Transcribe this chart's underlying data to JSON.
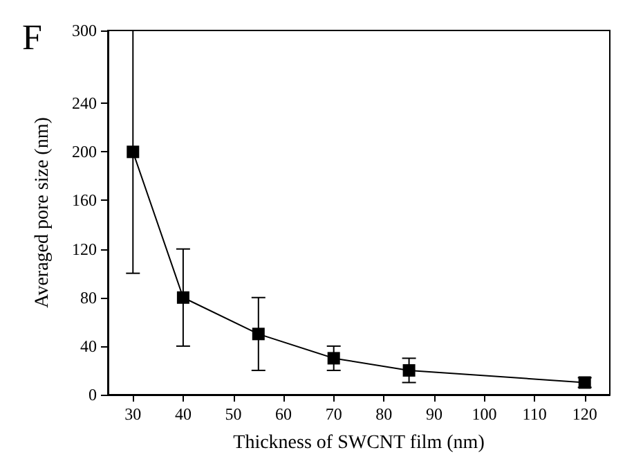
{
  "chart_data": {
    "type": "line",
    "xlabel": "Thickness of SWCNT film (nm)",
    "ylabel": "Averaged pore size (nm)",
    "annotations": [
      "F"
    ],
    "x": [
      30,
      40,
      55,
      70,
      85,
      120
    ],
    "series": [
      {
        "color": "#000000",
        "values": [
          200,
          80,
          50,
          30,
          20,
          10
        ],
        "errors": [
          [
            100,
            300
          ],
          [
            40,
            120
          ],
          [
            20,
            80
          ],
          [
            20,
            40
          ],
          [
            10,
            30
          ],
          [
            6,
            14
          ]
        ]
      }
    ],
    "xlim": [
      25,
      125
    ],
    "xticks": [
      30,
      40,
      50,
      60,
      70,
      80,
      90,
      100,
      110,
      120
    ],
    "ylim": [
      0,
      300
    ],
    "yticks": [
      0,
      40,
      80,
      120,
      160,
      200,
      240,
      300
    ],
    "grid": false,
    "marker": "square",
    "line_style": "solid"
  }
}
